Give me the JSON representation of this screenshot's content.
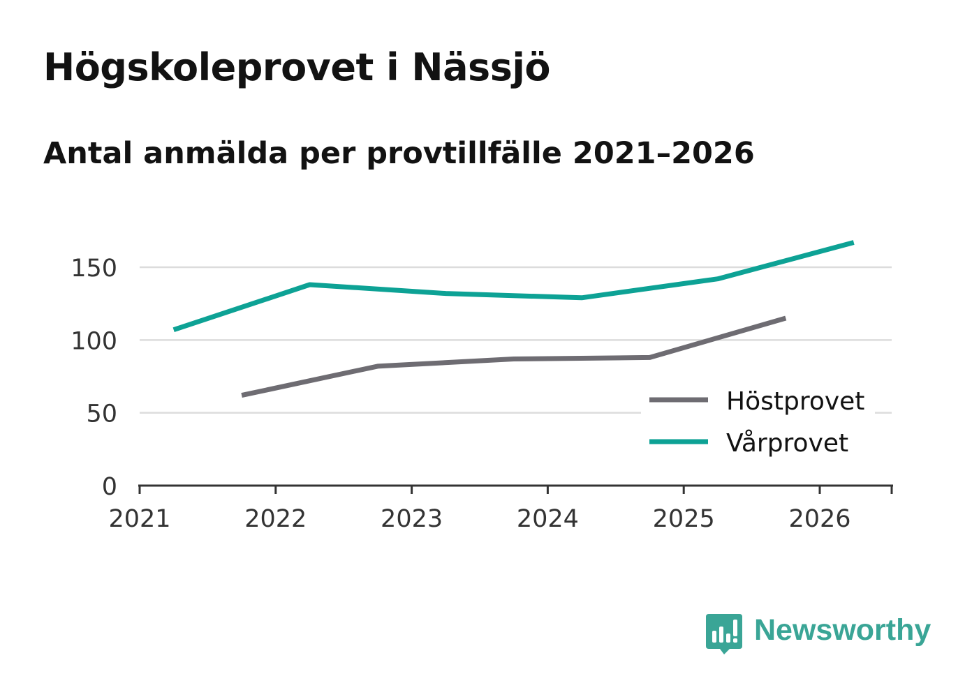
{
  "header": {
    "title": "Högskoleprovet i Nässjö",
    "subtitle": "Antal anmälda per provtillfälle 2021–2026"
  },
  "brand": {
    "name": "Newsworthy",
    "icon": "newsworthy-logo-icon",
    "color": "#3aa596"
  },
  "colors": {
    "hostprovet": "#6e6c72",
    "varprovet": "#0da295",
    "grid": "#dcdcdc",
    "axis": "#333333",
    "text": "#121212"
  },
  "chart_data": {
    "type": "line",
    "title": "Högskoleprovet i Nässjö",
    "subtitle": "Antal anmälda per provtillfälle 2021–2026",
    "xlabel": "",
    "ylabel": "",
    "xlim": [
      2021,
      2026.5
    ],
    "ylim": [
      0,
      150
    ],
    "yticks": [
      0,
      50,
      100,
      150
    ],
    "xticks": [
      2021,
      2022,
      2023,
      2024,
      2025,
      2026
    ],
    "ytick_labels": [
      "0",
      "50",
      "100",
      "150"
    ],
    "xtick_labels": [
      "2021",
      "2022",
      "2023",
      "2024",
      "2025",
      "2026"
    ],
    "grid": true,
    "legend_position": "bottom-right",
    "series": [
      {
        "name": "Höstprovet",
        "color": "#6e6c72",
        "x": [
          2021.75,
          2022.75,
          2023.75,
          2024.75,
          2025.75
        ],
        "y": [
          62,
          82,
          87,
          88,
          115
        ]
      },
      {
        "name": "Vårprovet",
        "color": "#0da295",
        "x": [
          2021.25,
          2022.25,
          2023.25,
          2024.25,
          2025.25,
          2026.25
        ],
        "y": [
          107,
          138,
          132,
          129,
          142,
          167
        ]
      }
    ]
  }
}
